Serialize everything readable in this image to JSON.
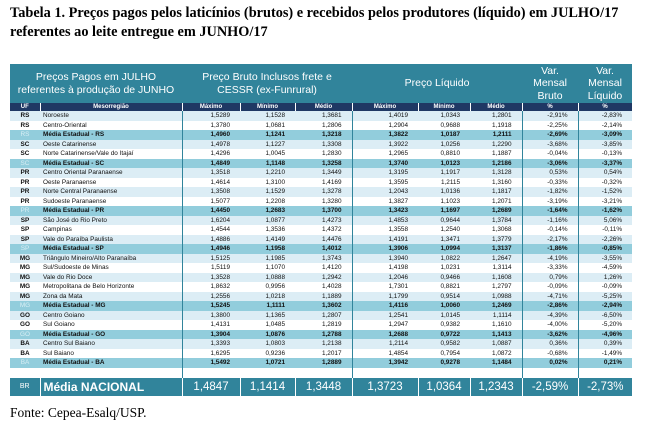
{
  "title": "Tabela 1. Preços pagos pelos laticínios (brutos) e recebidos pelos produtores (líquido) em JULHO/17 referentes ao leite entregue em JUNHO/17",
  "header": {
    "col1": "Preços Pagos em JULHO referentes à produção de JUNHO",
    "col2": "Preço Bruto Inclusos frete e CESSR (ex-Funrural)",
    "col3": "Preço Líquido",
    "col4": "Var. Mensal Bruto",
    "col5": "Var. Mensal Líquido",
    "sub": [
      "UF",
      "Mesorregião",
      "Máximo",
      "Mínimo",
      "Médio",
      "Máximo",
      "Mínimo",
      "Médio",
      "%",
      "%"
    ]
  },
  "rows": [
    {
      "type": "a",
      "uf": "RS",
      "name": "Noroeste",
      "v": [
        "1,5289",
        "1,1528",
        "1,3681",
        "1,4019",
        "1,0343",
        "1,2801",
        "-2,91%",
        "-2,83%"
      ]
    },
    {
      "type": "b",
      "uf": "RS",
      "name": "Centro-Oriental",
      "v": [
        "1,3780",
        "1,0681",
        "1,2806",
        "1,2904",
        "0,9688",
        "1,1918",
        "-2,25%",
        "-2,14%"
      ]
    },
    {
      "type": "avg",
      "uf": "RS",
      "name": "Média Estadual - RS",
      "v": [
        "1,4960",
        "1,1241",
        "1,3218",
        "1,3822",
        "1,0187",
        "1,2111",
        "-2,69%",
        "-3,09%"
      ]
    },
    {
      "type": "a",
      "uf": "SC",
      "name": "Oeste Catarinense",
      "v": [
        "1,4978",
        "1,1227",
        "1,3308",
        "1,3922",
        "1,0256",
        "1,2290",
        "-3,68%",
        "-3,85%"
      ]
    },
    {
      "type": "b",
      "uf": "SC",
      "name": "Norte Catarinense/Vale do Itajaí",
      "v": [
        "1,4296",
        "1,0045",
        "1,2830",
        "1,2965",
        "0,8810",
        "1,1887",
        "-0,04%",
        "-0,13%"
      ]
    },
    {
      "type": "avg",
      "uf": "SC",
      "name": "Média Estadual - SC",
      "v": [
        "1,4849",
        "1,1148",
        "1,3258",
        "1,3740",
        "1,0123",
        "1,2186",
        "-3,06%",
        "-3,37%"
      ]
    },
    {
      "type": "a",
      "uf": "PR",
      "name": "Centro Oriental Paranaense",
      "v": [
        "1,3518",
        "1,2210",
        "1,3449",
        "1,3195",
        "1,1917",
        "1,3128",
        "0,53%",
        "0,54%"
      ]
    },
    {
      "type": "b",
      "uf": "PR",
      "name": "Oeste Paranaense",
      "v": [
        "1,4614",
        "1,3100",
        "1,4169",
        "1,3595",
        "1,2115",
        "1,3160",
        "-0,33%",
        "-0,32%"
      ]
    },
    {
      "type": "a",
      "uf": "PR",
      "name": "Norte Central Paranaense",
      "v": [
        "1,3508",
        "1,1529",
        "1,3278",
        "1,2043",
        "1,0136",
        "1,1817",
        "-1,82%",
        "-1,52%"
      ]
    },
    {
      "type": "b",
      "uf": "PR",
      "name": "Sudoeste Paranaense",
      "v": [
        "1,5077",
        "1,2208",
        "1,3280",
        "1,3827",
        "1,1023",
        "1,2071",
        "-3,19%",
        "-3,21%"
      ]
    },
    {
      "type": "avg",
      "uf": "PR",
      "name": "Média Estadual - PR",
      "v": [
        "1,4450",
        "1,2683",
        "1,3700",
        "1,3423",
        "1,1697",
        "1,2689",
        "-1,64%",
        "-1,62%"
      ]
    },
    {
      "type": "a",
      "uf": "SP",
      "name": "São José do Rio Preto",
      "v": [
        "1,6204",
        "1,0877",
        "1,4273",
        "1,4853",
        "0,9644",
        "1,3784",
        "-1,16%",
        "5,06%"
      ]
    },
    {
      "type": "b",
      "uf": "SP",
      "name": "Campinas",
      "v": [
        "1,4544",
        "1,3536",
        "1,4372",
        "1,3558",
        "1,2540",
        "1,3068",
        "-0,14%",
        "-0,11%"
      ]
    },
    {
      "type": "a",
      "uf": "SP",
      "name": "Vale do Paraíba Paulista",
      "v": [
        "1,4886",
        "1,4149",
        "1,4476",
        "1,4191",
        "1,3471",
        "1,3779",
        "-2,17%",
        "-2,26%"
      ]
    },
    {
      "type": "avg",
      "uf": "SP",
      "name": "Média Estadual - SP",
      "v": [
        "1,4946",
        "1,1958",
        "1,4012",
        "1,3906",
        "1,0994",
        "1,3137",
        "-1,86%",
        "-0,85%"
      ]
    },
    {
      "type": "a",
      "uf": "MG",
      "name": "Triângulo Mineiro/Alto Paranaíba",
      "v": [
        "1,5125",
        "1,1985",
        "1,3743",
        "1,3940",
        "1,0822",
        "1,2647",
        "-4,19%",
        "-3,55%"
      ]
    },
    {
      "type": "b",
      "uf": "MG",
      "name": "Sul/Sudoeste de Minas",
      "v": [
        "1,5119",
        "1,1070",
        "1,4120",
        "1,4198",
        "1,0231",
        "1,3114",
        "-3,33%",
        "-4,59%"
      ]
    },
    {
      "type": "a",
      "uf": "MG",
      "name": "Vale do Rio Doce",
      "v": [
        "1,3528",
        "1,0888",
        "1,2942",
        "1,2046",
        "0,9466",
        "1,1608",
        "0,79%",
        "1,26%"
      ]
    },
    {
      "type": "b",
      "uf": "MG",
      "name": "Metropolitana de Belo Horizonte",
      "v": [
        "1,8632",
        "0,9956",
        "1,4028",
        "1,7301",
        "0,8821",
        "1,2797",
        "-0,09%",
        "-0,09%"
      ]
    },
    {
      "type": "a",
      "uf": "MG",
      "name": "Zona da Mata",
      "v": [
        "1,2556",
        "1,0218",
        "1,1889",
        "1,1799",
        "0,9514",
        "1,0988",
        "-4,71%",
        "-5,25%"
      ]
    },
    {
      "type": "avg",
      "uf": "MG",
      "name": "Média Estadual - MG",
      "v": [
        "1,5245",
        "1,1111",
        "1,3602",
        "1,4116",
        "1,0060",
        "1,2469",
        "-2,86%",
        "-2,94%"
      ]
    },
    {
      "type": "a",
      "uf": "GO",
      "name": "Centro Goiano",
      "v": [
        "1,3800",
        "1,1365",
        "1,2807",
        "1,2541",
        "1,0145",
        "1,1114",
        "-4,39%",
        "-6,50%"
      ]
    },
    {
      "type": "b",
      "uf": "GO",
      "name": "Sul Goiano",
      "v": [
        "1,4131",
        "1,0485",
        "1,2819",
        "1,2947",
        "0,9382",
        "1,1610",
        "-4,00%",
        "-5,20%"
      ]
    },
    {
      "type": "avg",
      "uf": "GO",
      "name": "Média Estadual - GO",
      "v": [
        "1,3904",
        "1,0876",
        "1,2788",
        "1,2688",
        "0,9722",
        "1,1413",
        "-3,62%",
        "-4,96%"
      ]
    },
    {
      "type": "a",
      "uf": "BA",
      "name": "Centro Sul Baiano",
      "v": [
        "1,3393",
        "1,0803",
        "1,2138",
        "1,2114",
        "0,9582",
        "1,0887",
        "0,36%",
        "0,39%"
      ]
    },
    {
      "type": "b",
      "uf": "BA",
      "name": "Sul Baiano",
      "v": [
        "1,6295",
        "0,9236",
        "1,2017",
        "1,4854",
        "0,7954",
        "1,0872",
        "-0,68%",
        "-1,49%"
      ]
    },
    {
      "type": "avg",
      "uf": "BA",
      "name": "Média Estadual - BA",
      "v": [
        "1,5492",
        "1,0721",
        "1,2889",
        "1,3942",
        "0,9278",
        "1,1484",
        "0,02%",
        "0,21%"
      ]
    }
  ],
  "national": {
    "uf": "BR",
    "name": "Média NACIONAL",
    "v": [
      "1,4847",
      "1,1414",
      "1,3448",
      "1,3723",
      "1,0364",
      "1,2343",
      "-2,59%",
      "-2,73%"
    ]
  },
  "footnote": "Fonte: Cepea-Esalq/USP."
}
